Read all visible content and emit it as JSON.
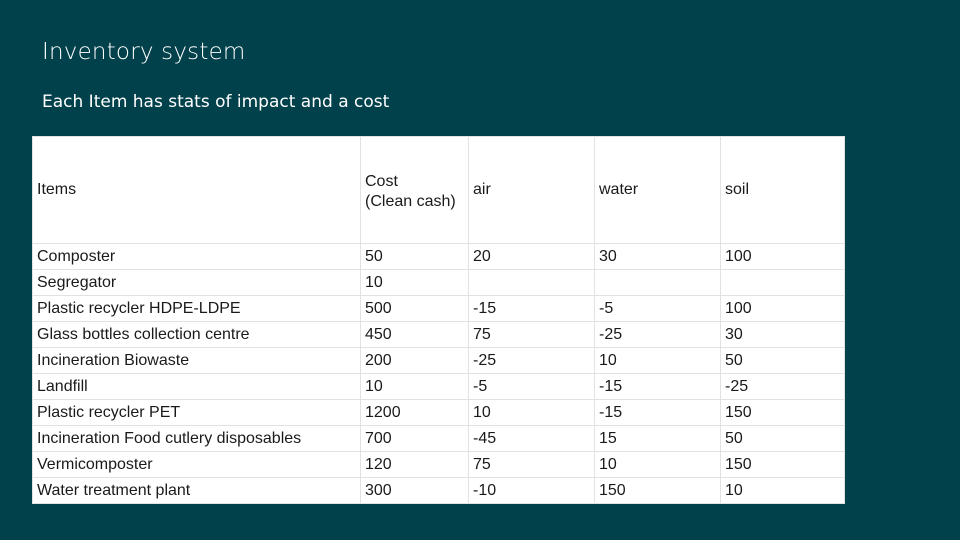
{
  "slide": {
    "title": "Inventory system",
    "subtitle": "Each Item has stats of impact and a cost"
  },
  "table": {
    "headers": {
      "items": "Items",
      "cost_line1": "Cost",
      "cost_line2": "(Clean cash)",
      "air": "air",
      "water": "water",
      "soil": "soil"
    },
    "rows": [
      {
        "item": "Composter",
        "cost": "50",
        "air": "20",
        "water": "30",
        "soil": "100"
      },
      {
        "item": "Segregator",
        "cost": "10",
        "air": "",
        "water": "",
        "soil": ""
      },
      {
        "item": "Plastic recycler HDPE-LDPE",
        "cost": "500",
        "air": "-15",
        "water": "-5",
        "soil": "100"
      },
      {
        "item": "Glass bottles collection centre",
        "cost": "450",
        "air": "75",
        "water": "-25",
        "soil": "30"
      },
      {
        "item": "Incineration Biowaste",
        "cost": "200",
        "air": "-25",
        "water": "10",
        "soil": "50"
      },
      {
        "item": "Landfill",
        "cost": "10",
        "air": "-5",
        "water": "-15",
        "soil": "-25"
      },
      {
        "item": "Plastic recycler PET",
        "cost": "1200",
        "air": "10",
        "water": "-15",
        "soil": "150"
      },
      {
        "item": "Incineration Food cutlery disposables",
        "cost": "700",
        "air": "-45",
        "water": "15",
        "soil": "50"
      },
      {
        "item": "Vermicomposter",
        "cost": "120",
        "air": "75",
        "water": "10",
        "soil": "150"
      },
      {
        "item": "Water treatment plant",
        "cost": "300",
        "air": "-10",
        "water": "150",
        "soil": "10"
      }
    ]
  }
}
